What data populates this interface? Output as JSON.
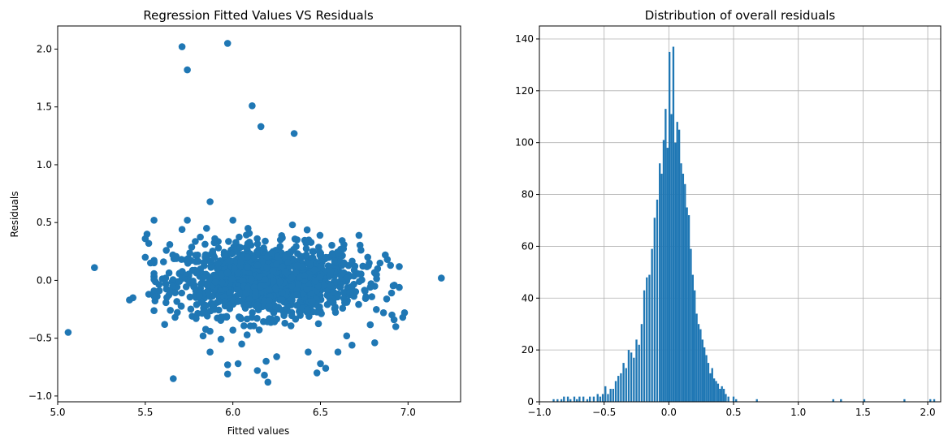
{
  "chart_data": [
    {
      "type": "scatter",
      "title": "Regression Fitted Values VS Residuals",
      "xlabel": "Fitted values",
      "ylabel": "Residuals",
      "xlim": [
        5.0,
        7.3
      ],
      "ylim": [
        -1.05,
        2.2
      ],
      "xticks": [
        5.0,
        5.5,
        6.0,
        6.5,
        7.0
      ],
      "xtick_labels": [
        "5.0",
        "5.5",
        "6.0",
        "6.5",
        "7.0"
      ],
      "yticks": [
        -1.0,
        -0.5,
        0.0,
        0.5,
        1.0,
        1.5,
        2.0
      ],
      "ytick_labels": [
        "−1.0",
        "−0.5",
        "0.0",
        "0.5",
        "1.0",
        "1.5",
        "2.0"
      ],
      "grid": false,
      "color": "#1f77b4",
      "points": [
        [
          5.06,
          -0.45
        ],
        [
          5.21,
          0.11
        ],
        [
          5.41,
          -0.17
        ],
        [
          5.43,
          -0.15
        ],
        [
          5.51,
          0.4
        ],
        [
          5.5,
          0.36
        ],
        [
          5.55,
          0.52
        ],
        [
          5.52,
          0.32
        ],
        [
          5.5,
          0.2
        ],
        [
          5.53,
          0.15
        ],
        [
          5.52,
          -0.12
        ],
        [
          5.58,
          -0.09
        ],
        [
          5.62,
          0.26
        ],
        [
          5.64,
          0.31
        ],
        [
          5.66,
          -0.85
        ],
        [
          5.67,
          -0.32
        ],
        [
          5.71,
          2.02
        ],
        [
          5.74,
          1.82
        ],
        [
          5.74,
          0.52
        ],
        [
          5.71,
          0.44
        ],
        [
          5.79,
          -0.33
        ],
        [
          5.83,
          -0.48
        ],
        [
          5.87,
          -0.62
        ],
        [
          5.87,
          0.68
        ],
        [
          5.85,
          0.45
        ],
        [
          5.97,
          2.05
        ],
        [
          5.97,
          -0.73
        ],
        [
          5.97,
          -0.81
        ],
        [
          6.03,
          -0.72
        ],
        [
          6.0,
          0.52
        ],
        [
          6.0,
          -0.43
        ],
        [
          6.11,
          1.51
        ],
        [
          6.16,
          1.33
        ],
        [
          6.14,
          -0.78
        ],
        [
          6.18,
          -0.82
        ],
        [
          6.19,
          -0.7
        ],
        [
          6.2,
          -0.88
        ],
        [
          6.25,
          -0.66
        ],
        [
          6.35,
          1.27
        ],
        [
          6.34,
          0.48
        ],
        [
          6.43,
          -0.62
        ],
        [
          6.48,
          -0.8
        ],
        [
          6.53,
          -0.76
        ],
        [
          6.5,
          -0.72
        ],
        [
          6.6,
          -0.62
        ],
        [
          6.65,
          -0.48
        ],
        [
          6.68,
          -0.56
        ],
        [
          6.72,
          0.39
        ],
        [
          6.77,
          0.2
        ],
        [
          6.81,
          -0.54
        ],
        [
          6.87,
          0.22
        ],
        [
          6.9,
          0.13
        ],
        [
          6.92,
          -0.34
        ],
        [
          6.93,
          -0.4
        ],
        [
          6.97,
          -0.32
        ],
        [
          6.98,
          -0.28
        ],
        [
          7.19,
          0.02
        ],
        [
          6.84,
          0.15
        ],
        [
          6.86,
          -0.28
        ],
        [
          6.82,
          0.05
        ]
      ],
      "cluster_points_generated": 1400,
      "cluster_note": "dense blob centred near x=6.2, y=0"
    },
    {
      "type": "bar",
      "title": "Distribution of overall residuals",
      "xlim": [
        -1.0,
        2.1
      ],
      "ylim": [
        0,
        145
      ],
      "xticks": [
        -1.0,
        -0.5,
        0.0,
        0.5,
        1.0,
        1.5,
        2.0
      ],
      "xtick_labels": [
        "−1.0",
        "−0.5",
        "0.0",
        "0.5",
        "1.0",
        "1.5",
        "2.0"
      ],
      "yticks": [
        0,
        20,
        40,
        60,
        80,
        100,
        120,
        140
      ],
      "ytick_labels": [
        "0",
        "20",
        "40",
        "60",
        "80",
        "100",
        "120",
        "140"
      ],
      "grid": true,
      "color": "#1f77b4",
      "bin_width": 0.0147,
      "bins": [
        {
          "x": -0.89,
          "count": 1
        },
        {
          "x": -0.86,
          "count": 1
        },
        {
          "x": -0.83,
          "count": 1
        },
        {
          "x": -0.81,
          "count": 2
        },
        {
          "x": -0.78,
          "count": 2
        },
        {
          "x": -0.76,
          "count": 1
        },
        {
          "x": -0.73,
          "count": 2
        },
        {
          "x": -0.71,
          "count": 1
        },
        {
          "x": -0.69,
          "count": 2
        },
        {
          "x": -0.66,
          "count": 2
        },
        {
          "x": -0.63,
          "count": 1
        },
        {
          "x": -0.61,
          "count": 2
        },
        {
          "x": -0.58,
          "count": 2
        },
        {
          "x": -0.55,
          "count": 3
        },
        {
          "x": -0.53,
          "count": 2
        },
        {
          "x": -0.51,
          "count": 3
        },
        {
          "x": -0.49,
          "count": 6
        },
        {
          "x": -0.47,
          "count": 3
        },
        {
          "x": -0.45,
          "count": 5
        },
        {
          "x": -0.43,
          "count": 5
        },
        {
          "x": -0.41,
          "count": 8
        },
        {
          "x": -0.39,
          "count": 10
        },
        {
          "x": -0.37,
          "count": 11
        },
        {
          "x": -0.35,
          "count": 15
        },
        {
          "x": -0.33,
          "count": 13
        },
        {
          "x": -0.31,
          "count": 20
        },
        {
          "x": -0.29,
          "count": 19
        },
        {
          "x": -0.27,
          "count": 17
        },
        {
          "x": -0.25,
          "count": 24
        },
        {
          "x": -0.23,
          "count": 22
        },
        {
          "x": -0.21,
          "count": 30
        },
        {
          "x": -0.19,
          "count": 43
        },
        {
          "x": -0.17,
          "count": 48
        },
        {
          "x": -0.15,
          "count": 49
        },
        {
          "x": -0.13,
          "count": 59
        },
        {
          "x": -0.11,
          "count": 71
        },
        {
          "x": -0.09,
          "count": 78
        },
        {
          "x": -0.07,
          "count": 92
        },
        {
          "x": -0.055,
          "count": 88
        },
        {
          "x": -0.04,
          "count": 101
        },
        {
          "x": -0.025,
          "count": 113
        },
        {
          "x": -0.01,
          "count": 98
        },
        {
          "x": 0.005,
          "count": 135
        },
        {
          "x": 0.02,
          "count": 111
        },
        {
          "x": 0.035,
          "count": 137
        },
        {
          "x": 0.05,
          "count": 100
        },
        {
          "x": 0.065,
          "count": 108
        },
        {
          "x": 0.08,
          "count": 105
        },
        {
          "x": 0.095,
          "count": 92
        },
        {
          "x": 0.11,
          "count": 88
        },
        {
          "x": 0.125,
          "count": 84
        },
        {
          "x": 0.14,
          "count": 75
        },
        {
          "x": 0.155,
          "count": 72
        },
        {
          "x": 0.17,
          "count": 59
        },
        {
          "x": 0.185,
          "count": 49
        },
        {
          "x": 0.2,
          "count": 43
        },
        {
          "x": 0.215,
          "count": 34
        },
        {
          "x": 0.23,
          "count": 30
        },
        {
          "x": 0.245,
          "count": 28
        },
        {
          "x": 0.26,
          "count": 24
        },
        {
          "x": 0.275,
          "count": 21
        },
        {
          "x": 0.29,
          "count": 18
        },
        {
          "x": 0.305,
          "count": 15
        },
        {
          "x": 0.32,
          "count": 11
        },
        {
          "x": 0.335,
          "count": 13
        },
        {
          "x": 0.35,
          "count": 9
        },
        {
          "x": 0.365,
          "count": 8
        },
        {
          "x": 0.38,
          "count": 7
        },
        {
          "x": 0.395,
          "count": 5
        },
        {
          "x": 0.41,
          "count": 6
        },
        {
          "x": 0.425,
          "count": 5
        },
        {
          "x": 0.44,
          "count": 3
        },
        {
          "x": 0.46,
          "count": 2
        },
        {
          "x": 0.5,
          "count": 2
        },
        {
          "x": 0.52,
          "count": 1
        },
        {
          "x": 0.68,
          "count": 1
        },
        {
          "x": 1.27,
          "count": 1
        },
        {
          "x": 1.33,
          "count": 1
        },
        {
          "x": 1.51,
          "count": 1
        },
        {
          "x": 1.82,
          "count": 1
        },
        {
          "x": 2.02,
          "count": 1
        },
        {
          "x": 2.05,
          "count": 1
        }
      ]
    }
  ]
}
